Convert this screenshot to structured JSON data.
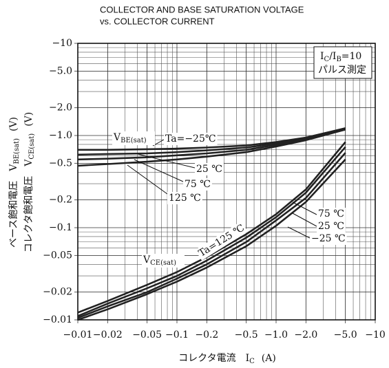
{
  "chart_data": {
    "type": "line",
    "title": "COLLECTOR AND BASE SATURATION VOLTAGE",
    "subtitle": "vs. COLLECTOR CURRENT",
    "x_label": {
      "prefix": "コレクタ電流",
      "symbol": "I",
      "sub": "C",
      "unit": "(A)"
    },
    "y_labels": [
      {
        "prefix": "ベース飽和電圧",
        "symbol": "V",
        "sub": "BE(sat)",
        "unit": "(V)"
      },
      {
        "prefix": "コレクタ飽和電圧",
        "symbol": "V",
        "sub": "CE(sat)",
        "unit": "(V)"
      }
    ],
    "condition": {
      "symbol1": "I",
      "sub1": "C",
      "mid": "/I",
      "sub2": "B",
      "rest": "=10",
      "line2": "パルス測定"
    },
    "group_labels": [
      {
        "symbol": "V",
        "sub": "BE(sat)"
      },
      {
        "symbol": "V",
        "sub": "CE(sat)"
      }
    ],
    "x_log": true,
    "y_log": true,
    "grid": true,
    "xlim": [
      -0.01,
      -10
    ],
    "ylim": [
      -0.01,
      -10
    ],
    "xticks": [
      {
        "value": -0.01,
        "label": "−0.01"
      },
      {
        "value": -0.02,
        "label": "−0.02"
      },
      {
        "value": -0.05,
        "label": "−0.05"
      },
      {
        "value": -0.1,
        "label": "−0.1"
      },
      {
        "value": -0.2,
        "label": "−0.2"
      },
      {
        "value": -0.5,
        "label": "−0.5"
      },
      {
        "value": -1,
        "label": "−1.0"
      },
      {
        "value": -2,
        "label": "−2.0"
      },
      {
        "value": -5,
        "label": "−5.0"
      },
      {
        "value": -10,
        "label": "−10"
      }
    ],
    "yticks": [
      {
        "value": -0.01,
        "label": "−0.01"
      },
      {
        "value": -0.02,
        "label": "−0.02"
      },
      {
        "value": -0.05,
        "label": "−0.05"
      },
      {
        "value": -0.1,
        "label": "−0.1"
      },
      {
        "value": -0.2,
        "label": "−0.2"
      },
      {
        "value": -0.5,
        "label": "−0.5"
      },
      {
        "value": -1,
        "label": "−1.0"
      },
      {
        "value": -2,
        "label": "−2.0"
      },
      {
        "value": -5,
        "label": "−5.0"
      },
      {
        "value": -10,
        "label": "−10"
      }
    ],
    "x": [
      -0.01,
      -0.02,
      -0.05,
      -0.1,
      -0.2,
      -0.5,
      -1,
      -2,
      -5
    ],
    "series": [
      {
        "name": "Ta=−25℃",
        "color": "#222222",
        "values": [
          -0.7,
          -0.7,
          -0.71,
          -0.72,
          -0.74,
          -0.78,
          -0.85,
          -0.95,
          -1.2
        ]
      },
      {
        "name": "25 ℃",
        "color": "#222222",
        "values": [
          -0.62,
          -0.63,
          -0.64,
          -0.66,
          -0.69,
          -0.74,
          -0.82,
          -0.93,
          -1.2
        ]
      },
      {
        "name": "75 ℃",
        "color": "#222222",
        "values": [
          -0.55,
          -0.56,
          -0.58,
          -0.61,
          -0.64,
          -0.7,
          -0.79,
          -0.91,
          -1.18
        ]
      },
      {
        "name": "125 ℃",
        "color": "#222222",
        "values": [
          -0.47,
          -0.49,
          -0.52,
          -0.55,
          -0.59,
          -0.66,
          -0.76,
          -0.89,
          -1.16
        ]
      },
      {
        "name": "Ta=125 ℃",
        "color": "#222222",
        "values": [
          -0.012,
          -0.016,
          -0.024,
          -0.033,
          -0.048,
          -0.085,
          -0.14,
          -0.26,
          -0.85
        ]
      },
      {
        "name": "75 ℃",
        "color": "#222222",
        "values": [
          -0.011,
          -0.015,
          -0.022,
          -0.03,
          -0.044,
          -0.078,
          -0.13,
          -0.24,
          -0.75
        ]
      },
      {
        "name": "25 ℃",
        "color": "#222222",
        "values": [
          -0.0105,
          -0.014,
          -0.02,
          -0.028,
          -0.04,
          -0.07,
          -0.12,
          -0.21,
          -0.65
        ]
      },
      {
        "name": "−25 ℃",
        "color": "#222222",
        "values": [
          -0.01,
          -0.013,
          -0.019,
          -0.026,
          -0.037,
          -0.063,
          -0.105,
          -0.19,
          -0.55
        ]
      }
    ]
  }
}
